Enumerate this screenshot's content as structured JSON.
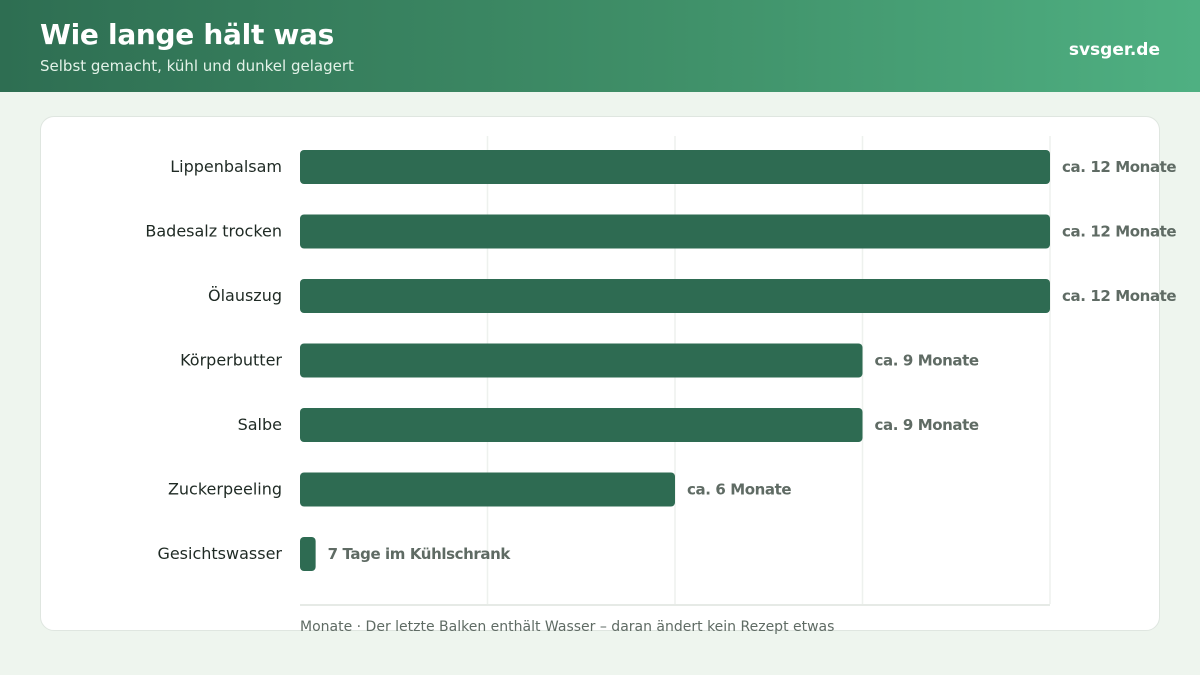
{
  "header": {
    "title": "Wie lange hält was",
    "subtitle": "Selbst gemacht, kühl und dunkel gelagert",
    "brand": "svsger.de"
  },
  "colors": {
    "bar": "#2e6b52",
    "label": "#1f2a24",
    "value_label": "#5f6b64",
    "grid": "#eef1ee"
  },
  "chart_data": {
    "type": "bar",
    "orientation": "horizontal",
    "categories": [
      "Lippenbalsam",
      "Badesalz trocken",
      "Ölauszug",
      "Körperbutter",
      "Salbe",
      "Zuckerpeeling",
      "Gesichtswasser"
    ],
    "values": [
      12,
      12,
      12,
      9,
      9,
      6,
      0.25
    ],
    "value_labels": [
      "ca. 12 Monate",
      "ca. 12 Monate",
      "ca. 12 Monate",
      "ca. 9 Monate",
      "ca. 9 Monate",
      "ca. 6 Monate",
      "7 Tage im Kühlschrank"
    ],
    "xlim": [
      0,
      12
    ],
    "grid": true,
    "footnote": "Monate · Der letzte Balken enthält Wasser – daran ändert kein Rezept etwas"
  }
}
